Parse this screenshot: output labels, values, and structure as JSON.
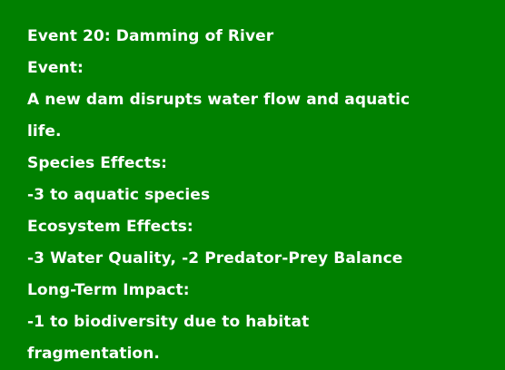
{
  "event": {
    "title": "Event 20: Damming of River",
    "event_heading": "Event:",
    "event_description": "A new dam disrupts water flow and aquatic life.",
    "species_heading": "Species Effects:",
    "species_effects": "-3 to aquatic species",
    "ecosystem_heading": "Ecosystem Effects:",
    "ecosystem_effects": "-3 Water Quality, -2 Predator-Prey Balance",
    "longterm_heading": "Long-Term Impact:",
    "longterm_effects": "-1 to biodiversity due to habitat fragmentation."
  },
  "colors": {
    "background": "#008000",
    "text": "#ffffff"
  }
}
